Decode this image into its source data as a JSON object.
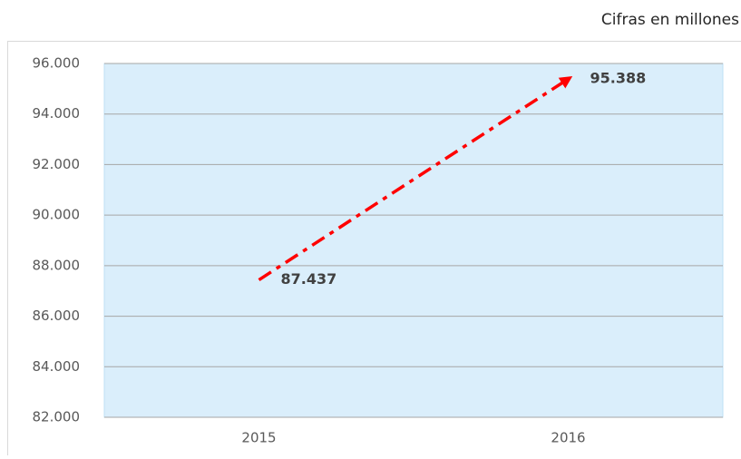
{
  "chart_data": {
    "type": "line",
    "subtitle": "Cifras en millones",
    "categories": [
      "2015",
      "2016"
    ],
    "values": [
      87437,
      95388
    ],
    "value_labels": [
      "87.437",
      "95.388"
    ],
    "color": "#ff0000",
    "ylim": [
      82000,
      96000
    ],
    "yticks": [
      {
        "value": 82000,
        "label": "82.000"
      },
      {
        "value": 84000,
        "label": "84.000"
      },
      {
        "value": 86000,
        "label": "86.000"
      },
      {
        "value": 88000,
        "label": "88.000"
      },
      {
        "value": 90000,
        "label": "90.000"
      },
      {
        "value": 92000,
        "label": "92.000"
      },
      {
        "value": 94000,
        "label": "94.000"
      },
      {
        "value": 96000,
        "label": "96.000"
      }
    ],
    "grid": true
  }
}
